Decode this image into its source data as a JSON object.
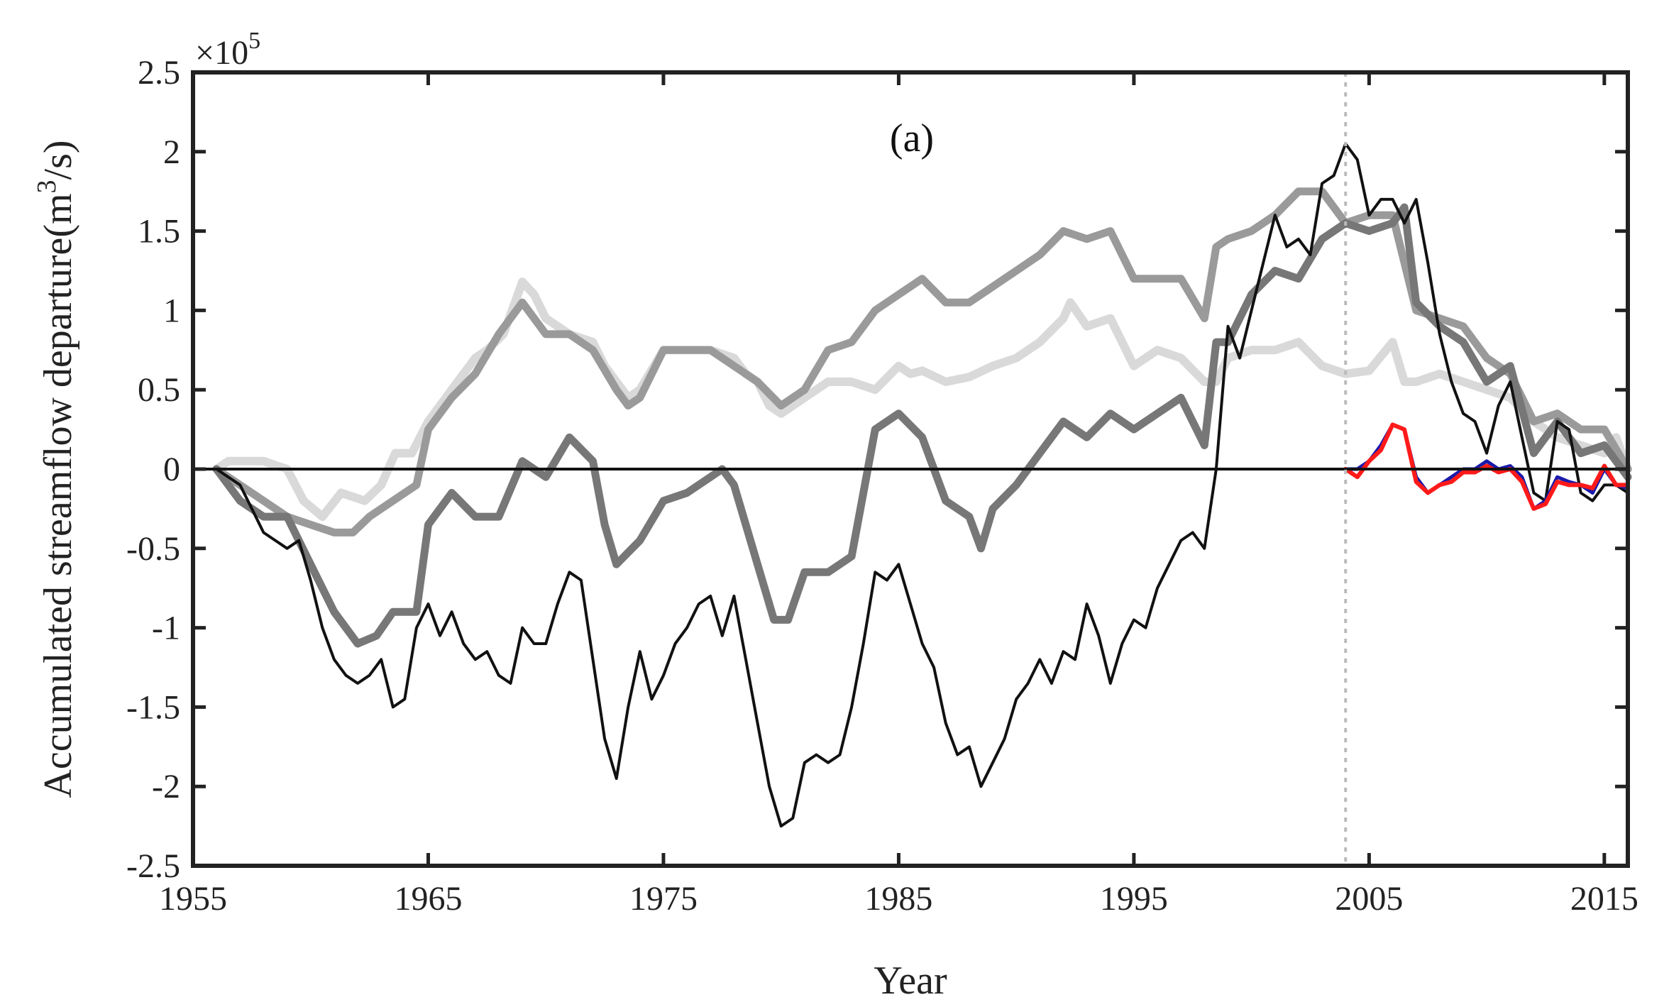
{
  "chart_data": {
    "type": "line",
    "title": "",
    "panel_label": "(a)",
    "xlabel": "Year",
    "ylabel_text": "Accumulated streamflow departure(m",
    "ylabel_sup": "3",
    "ylabel_tail": "/s)",
    "y_exponent_prefix": "×10",
    "y_exponent_power": "5",
    "xlim": [
      1955,
      2016
    ],
    "ylim": [
      -2.5,
      2.5
    ],
    "xticks": [
      1955,
      1965,
      1975,
      1985,
      1995,
      2005,
      2015
    ],
    "xtick_labels": [
      "1955",
      "1965",
      "1975",
      "1985",
      "1995",
      "2005",
      "2015"
    ],
    "yticks": [
      -2.5,
      -2,
      -1.5,
      -1,
      -0.5,
      0,
      0.5,
      1,
      1.5,
      2,
      2.5
    ],
    "ytick_labels": [
      "-2.5",
      "-2",
      "-1.5",
      "-1",
      "-0.5",
      "0",
      "0.5",
      "1",
      "1.5",
      "2",
      "2.5"
    ],
    "grid": false,
    "legend": "none",
    "zero_line": 0,
    "vertical_reference_x": 2004,
    "series": [
      {
        "color": "#d9d9d9",
        "stroke": 12,
        "x": [
          1956,
          1956.5,
          1957,
          1958,
          1959,
          1959.7,
          1960.5,
          1961.3,
          1962.3,
          1963,
          1963.6,
          1964.3,
          1965,
          1966,
          1966.5,
          1967,
          1967.5,
          1968.2,
          1969,
          1969.5,
          1970,
          1971,
          1972,
          1972.5,
          1973,
          1973.5,
          1974,
          1975,
          1976,
          1977,
          1978,
          1978.5,
          1979,
          1979.5,
          1980,
          1980.5,
          1981,
          1982,
          1983,
          1984,
          1985,
          1985.5,
          1986,
          1987,
          1988,
          1989,
          1990,
          1991,
          1992,
          1992.3,
          1993,
          1994,
          1995,
          1996,
          1997,
          1998,
          1998.5,
          1999,
          2000,
          2001,
          2002,
          2003,
          2004,
          2005,
          2006,
          2006.5,
          2007,
          2008,
          2009,
          2010,
          2011,
          2012,
          2013,
          2014,
          2015,
          2015.5,
          2016
        ],
        "values": [
          0.0,
          0.05,
          0.05,
          0.05,
          0.0,
          -0.2,
          -0.3,
          -0.15,
          -0.2,
          -0.1,
          0.1,
          0.1,
          0.3,
          0.5,
          0.6,
          0.7,
          0.75,
          0.85,
          1.18,
          1.1,
          0.95,
          0.85,
          0.8,
          0.65,
          0.55,
          0.45,
          0.5,
          0.75,
          0.75,
          0.75,
          0.7,
          0.6,
          0.55,
          0.4,
          0.35,
          0.4,
          0.45,
          0.55,
          0.55,
          0.5,
          0.65,
          0.6,
          0.62,
          0.55,
          0.58,
          0.65,
          0.7,
          0.8,
          0.95,
          1.05,
          0.9,
          0.95,
          0.65,
          0.75,
          0.7,
          0.55,
          0.55,
          0.7,
          0.75,
          0.75,
          0.8,
          0.65,
          0.6,
          0.62,
          0.8,
          0.55,
          0.55,
          0.6,
          0.55,
          0.5,
          0.45,
          0.3,
          0.2,
          0.15,
          0.1,
          0.2,
          0.0
        ]
      },
      {
        "color": "#9a9a9a",
        "stroke": 11,
        "x": [
          1956,
          1957,
          1958,
          1959,
          1960,
          1961,
          1961.8,
          1962.5,
          1963.5,
          1964.5,
          1965,
          1966,
          1967,
          1968,
          1969,
          1970,
          1971,
          1972,
          1973,
          1973.5,
          1974,
          1975,
          1976,
          1977,
          1978,
          1979,
          1980,
          1981,
          1982,
          1983,
          1984,
          1985,
          1986,
          1987,
          1988,
          1989,
          1990,
          1991,
          1992,
          1993,
          1994,
          1995,
          1996,
          1997,
          1998,
          1998.5,
          1999,
          2000,
          2001,
          2002,
          2003,
          2004,
          2005,
          2006,
          2007,
          2008,
          2009,
          2010,
          2011,
          2012,
          2013,
          2014,
          2015,
          2016
        ],
        "values": [
          0.0,
          -0.1,
          -0.2,
          -0.3,
          -0.35,
          -0.4,
          -0.4,
          -0.3,
          -0.2,
          -0.1,
          0.25,
          0.45,
          0.6,
          0.85,
          1.05,
          0.85,
          0.85,
          0.75,
          0.5,
          0.4,
          0.45,
          0.75,
          0.75,
          0.75,
          0.65,
          0.55,
          0.4,
          0.5,
          0.75,
          0.8,
          1.0,
          1.1,
          1.2,
          1.05,
          1.05,
          1.15,
          1.25,
          1.35,
          1.5,
          1.45,
          1.5,
          1.2,
          1.2,
          1.2,
          0.95,
          1.4,
          1.45,
          1.5,
          1.6,
          1.75,
          1.75,
          1.55,
          1.6,
          1.6,
          1.0,
          0.95,
          0.9,
          0.7,
          0.6,
          0.3,
          0.35,
          0.25,
          0.25,
          0.0
        ]
      },
      {
        "color": "#777777",
        "stroke": 11,
        "x": [
          1956,
          1957,
          1958,
          1959,
          1960,
          1961,
          1962,
          1962.8,
          1963.5,
          1964.5,
          1965,
          1966,
          1967,
          1968,
          1969,
          1970,
          1971,
          1972,
          1972.5,
          1973,
          1974,
          1975,
          1976,
          1977,
          1977.5,
          1978,
          1979,
          1979.7,
          1980.3,
          1981,
          1982,
          1983,
          1984,
          1985,
          1986,
          1987,
          1988,
          1988.5,
          1989,
          1990,
          1991,
          1992,
          1993,
          1994,
          1995,
          1996,
          1997,
          1998,
          1998.5,
          1999,
          2000,
          2001,
          2002,
          2003,
          2004,
          2005,
          2006,
          2006.5,
          2007,
          2008,
          2009,
          2010,
          2011,
          2012,
          2013,
          2014,
          2015,
          2016
        ],
        "values": [
          0.0,
          -0.2,
          -0.3,
          -0.3,
          -0.6,
          -0.9,
          -1.1,
          -1.05,
          -0.9,
          -0.9,
          -0.35,
          -0.15,
          -0.3,
          -0.3,
          0.05,
          -0.05,
          0.2,
          0.05,
          -0.35,
          -0.6,
          -0.45,
          -0.2,
          -0.15,
          -0.05,
          0.0,
          -0.1,
          -0.6,
          -0.95,
          -0.95,
          -0.65,
          -0.65,
          -0.55,
          0.25,
          0.35,
          0.2,
          -0.2,
          -0.3,
          -0.5,
          -0.25,
          -0.1,
          0.1,
          0.3,
          0.2,
          0.35,
          0.25,
          0.35,
          0.45,
          0.15,
          0.8,
          0.8,
          1.1,
          1.25,
          1.2,
          1.45,
          1.55,
          1.5,
          1.55,
          1.65,
          1.05,
          0.9,
          0.8,
          0.55,
          0.65,
          0.1,
          0.3,
          0.1,
          0.15,
          -0.05
        ]
      },
      {
        "color": "#111111",
        "stroke": 4,
        "x": [
          1956,
          1956.5,
          1957,
          1957.5,
          1958,
          1958.5,
          1959,
          1959.5,
          1960,
          1960.5,
          1961,
          1961.5,
          1962,
          1962.5,
          1963,
          1963.5,
          1964,
          1964.5,
          1965,
          1965.5,
          1966,
          1966.5,
          1967,
          1967.5,
          1968,
          1968.5,
          1969,
          1969.5,
          1970,
          1970.5,
          1971,
          1971.5,
          1972,
          1972.5,
          1973,
          1973.5,
          1974,
          1974.5,
          1975,
          1975.5,
          1976,
          1976.5,
          1977,
          1977.5,
          1978,
          1978.5,
          1979,
          1979.5,
          1980,
          1980.5,
          1981,
          1981.5,
          1982,
          1982.5,
          1983,
          1983.5,
          1984,
          1984.5,
          1985,
          1985.5,
          1986,
          1986.5,
          1987,
          1987.5,
          1988,
          1988.5,
          1989,
          1989.5,
          1990,
          1990.5,
          1991,
          1991.5,
          1992,
          1992.5,
          1993,
          1993.5,
          1994,
          1994.5,
          1995,
          1995.5,
          1996,
          1996.5,
          1997,
          1997.5,
          1998,
          1998.5,
          1999,
          1999.5,
          2000,
          2000.5,
          2001,
          2001.5,
          2002,
          2002.5,
          2003,
          2003.5,
          2004,
          2004.5,
          2005,
          2005.5,
          2006,
          2006.5,
          2007,
          2007.5,
          2008,
          2008.5,
          2009,
          2009.5,
          2010,
          2010.5,
          2011,
          2011.5,
          2012,
          2012.5,
          2013,
          2013.5,
          2014,
          2014.5,
          2015,
          2015.5,
          2016
        ],
        "values": [
          0.0,
          -0.05,
          -0.1,
          -0.25,
          -0.4,
          -0.45,
          -0.5,
          -0.45,
          -0.7,
          -1.0,
          -1.2,
          -1.3,
          -1.35,
          -1.3,
          -1.2,
          -1.5,
          -1.45,
          -1.0,
          -0.85,
          -1.05,
          -0.9,
          -1.1,
          -1.2,
          -1.15,
          -1.3,
          -1.35,
          -1.0,
          -1.1,
          -1.1,
          -0.85,
          -0.65,
          -0.7,
          -1.2,
          -1.7,
          -1.95,
          -1.5,
          -1.15,
          -1.45,
          -1.3,
          -1.1,
          -1.0,
          -0.85,
          -0.8,
          -1.05,
          -0.8,
          -1.2,
          -1.6,
          -2.0,
          -2.25,
          -2.2,
          -1.85,
          -1.8,
          -1.85,
          -1.8,
          -1.5,
          -1.1,
          -0.65,
          -0.7,
          -0.6,
          -0.85,
          -1.1,
          -1.25,
          -1.6,
          -1.8,
          -1.75,
          -2.0,
          -1.85,
          -1.7,
          -1.45,
          -1.35,
          -1.2,
          -1.35,
          -1.15,
          -1.2,
          -0.85,
          -1.05,
          -1.35,
          -1.1,
          -0.95,
          -1.0,
          -0.75,
          -0.6,
          -0.45,
          -0.4,
          -0.5,
          0.0,
          0.9,
          0.7,
          1.0,
          1.3,
          1.6,
          1.4,
          1.45,
          1.35,
          1.8,
          1.85,
          2.05,
          1.95,
          1.6,
          1.7,
          1.7,
          1.55,
          1.7,
          1.3,
          0.85,
          0.55,
          0.35,
          0.3,
          0.1,
          0.4,
          0.55,
          0.2,
          -0.15,
          -0.2,
          0.3,
          0.25,
          -0.15,
          -0.2,
          -0.1,
          -0.1,
          -0.15
        ]
      },
      {
        "color": "#1a1aaa",
        "stroke": 5,
        "x": [
          2004,
          2004.5,
          2005,
          2005.5,
          2006,
          2006.5,
          2007,
          2007.5,
          2008,
          2008.5,
          2009,
          2009.5,
          2010,
          2010.5,
          2011,
          2011.5,
          2012,
          2012.5,
          2013,
          2013.5,
          2014,
          2014.5,
          2015,
          2015.5,
          2016
        ],
        "values": [
          0.0,
          0.0,
          0.05,
          0.15,
          0.28,
          0.25,
          -0.05,
          -0.15,
          -0.1,
          -0.05,
          0.0,
          0.0,
          0.05,
          0.0,
          0.02,
          -0.05,
          -0.25,
          -0.2,
          -0.05,
          -0.08,
          -0.1,
          -0.15,
          0.0,
          -0.1,
          -0.12
        ]
      },
      {
        "color": "#ff1a1a",
        "stroke": 6,
        "x": [
          2004,
          2004.5,
          2005,
          2005.5,
          2006,
          2006.5,
          2007,
          2007.5,
          2008,
          2008.5,
          2009,
          2009.5,
          2010,
          2010.5,
          2011,
          2011.5,
          2012,
          2012.5,
          2013,
          2013.5,
          2014,
          2014.5,
          2015,
          2015.5,
          2016
        ],
        "values": [
          0.0,
          -0.05,
          0.05,
          0.12,
          0.28,
          0.25,
          -0.08,
          -0.15,
          -0.1,
          -0.08,
          -0.02,
          -0.02,
          0.02,
          -0.02,
          0.0,
          -0.08,
          -0.25,
          -0.22,
          -0.08,
          -0.1,
          -0.1,
          -0.12,
          0.02,
          -0.1,
          -0.1
        ]
      }
    ]
  }
}
